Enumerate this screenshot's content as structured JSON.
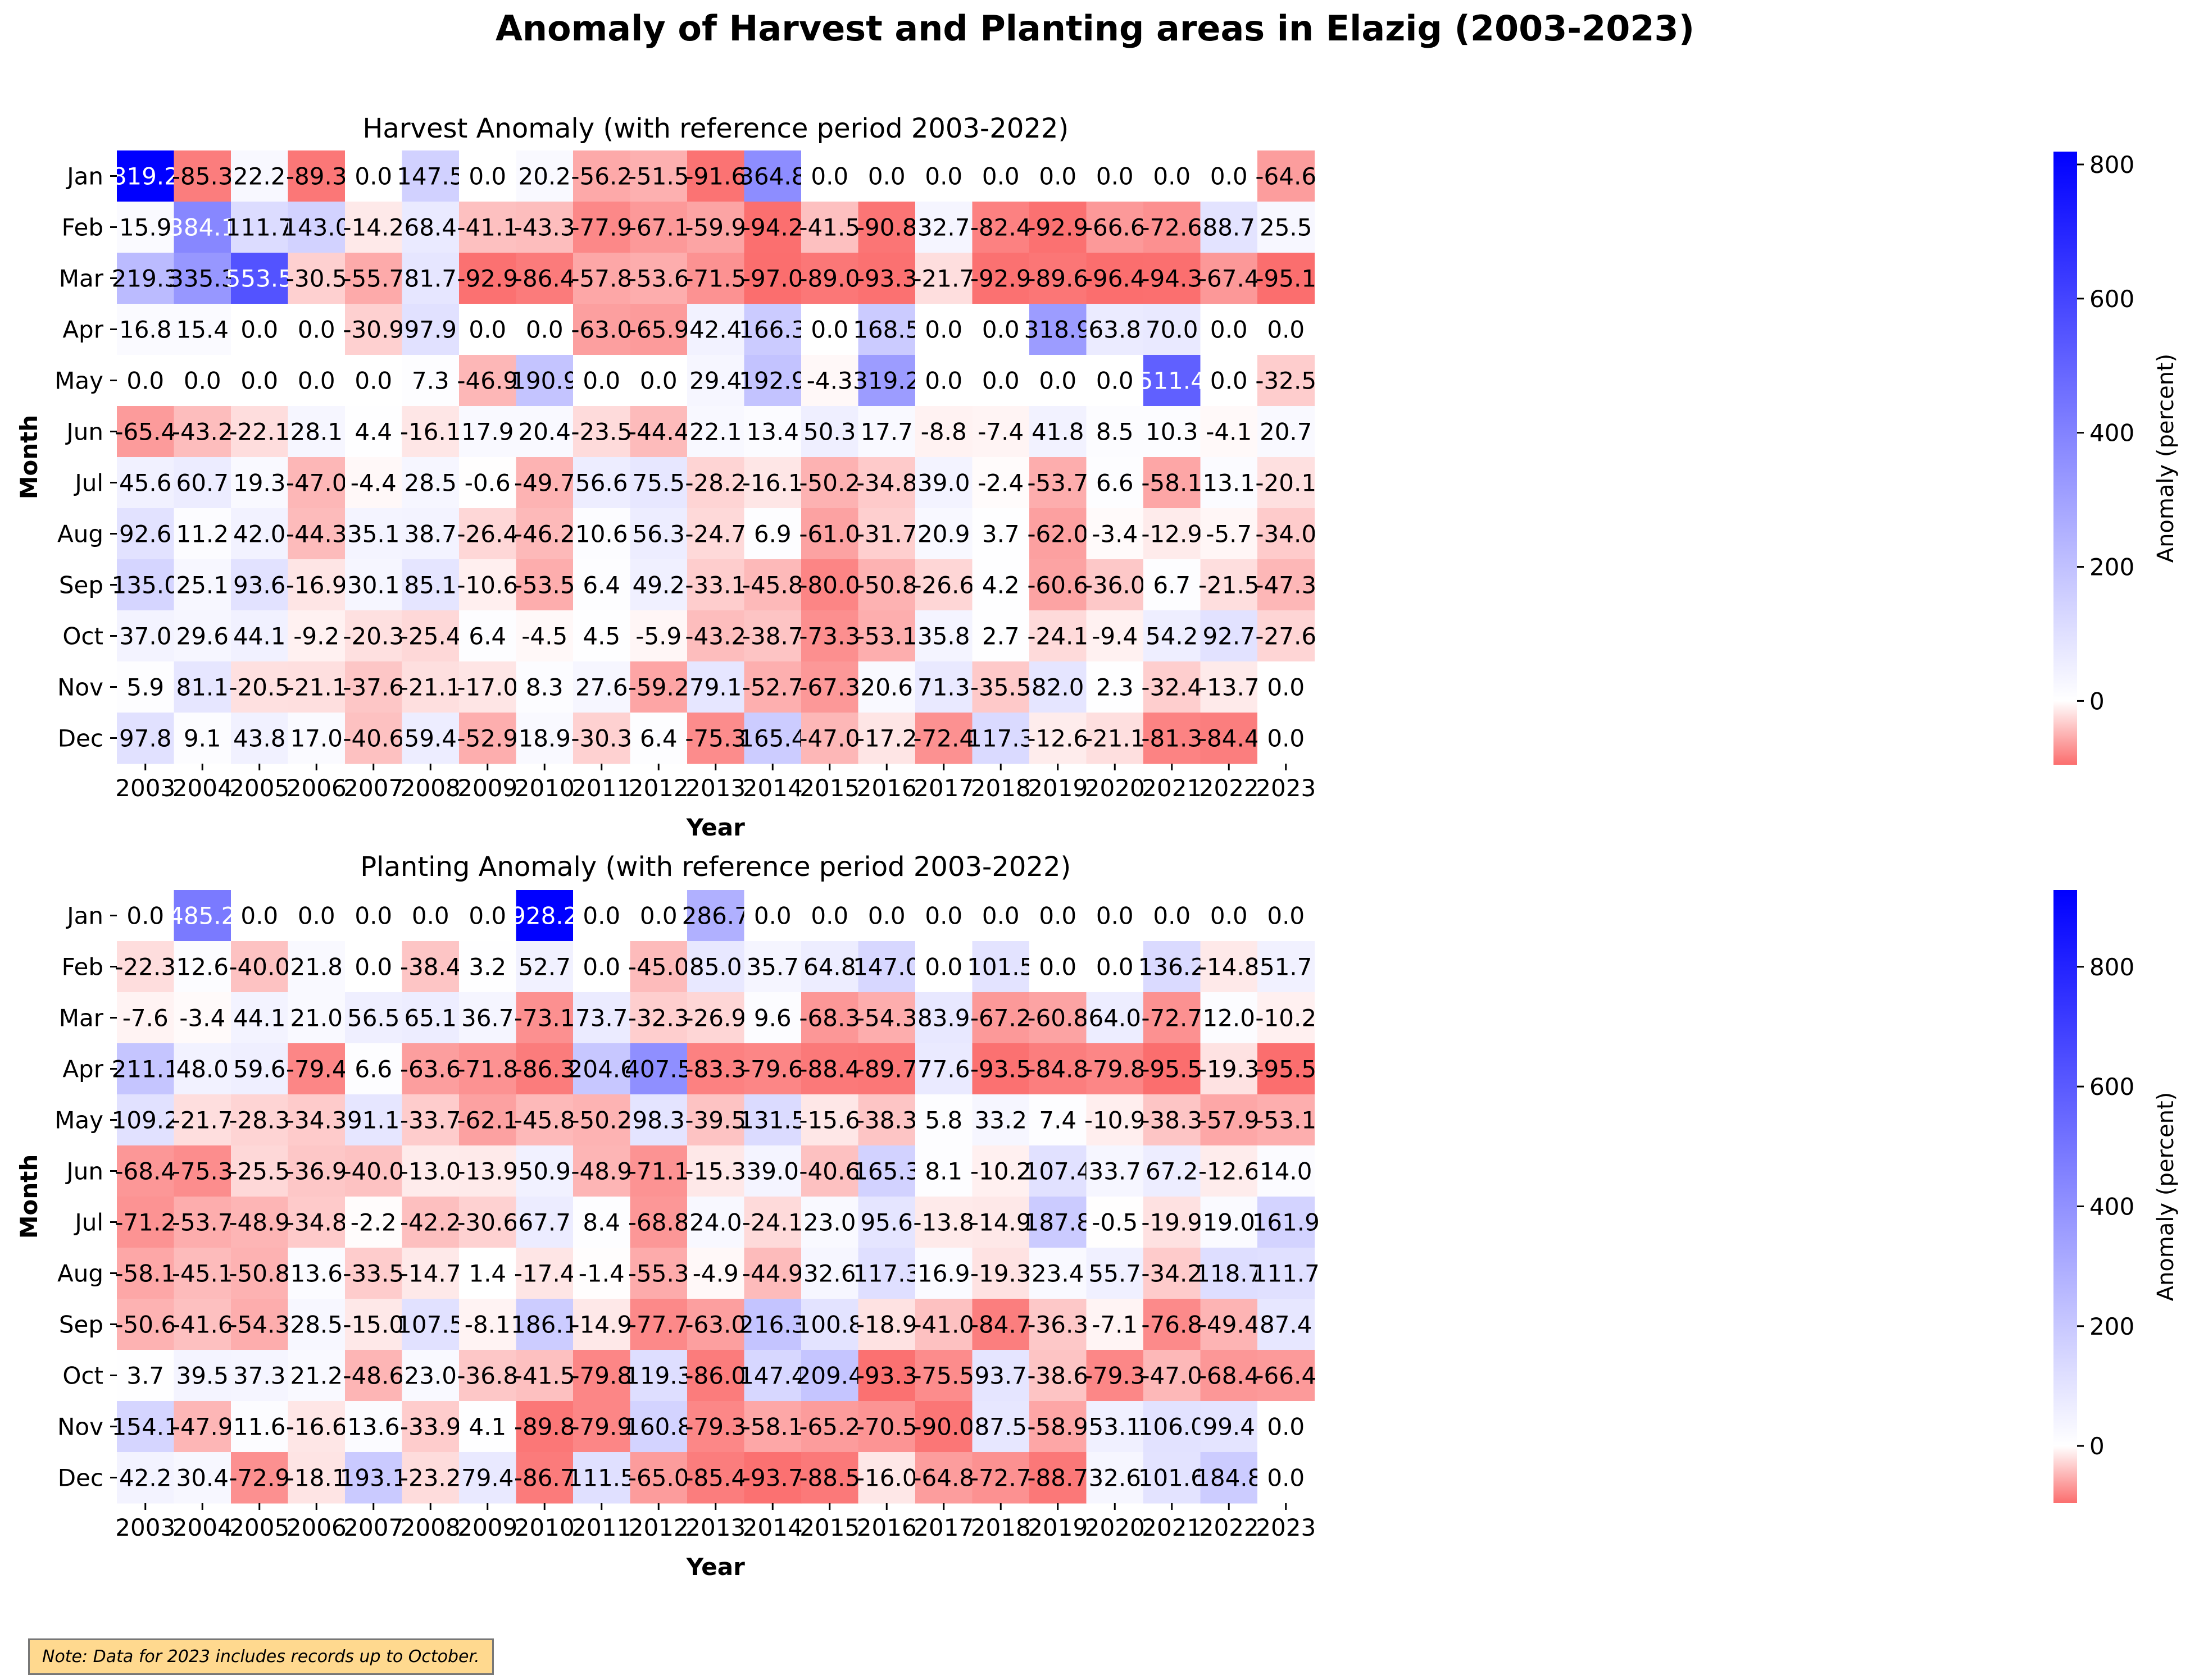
{
  "title": "Anomaly of Harvest and Planting areas in Elazig (2003-2023)",
  "note": "Note: Data for 2023 includes records up to October.",
  "colors": {
    "negative": "#fb6e6e",
    "zero": "#ffffff",
    "positive": "#0000ff"
  },
  "chart_data": [
    {
      "type": "heatmap",
      "title": "Harvest Anomaly (with reference period 2003-2022)",
      "xlabel": "Year",
      "ylabel": "Month",
      "colorbar_label": "Anomaly (percent)",
      "colorbar_ticks": [
        0,
        200,
        400,
        600,
        800
      ],
      "vmin": -95.1,
      "vmax": 819.2,
      "x": [
        "2003",
        "2004",
        "2005",
        "2006",
        "2007",
        "2008",
        "2009",
        "2010",
        "2011",
        "2012",
        "2013",
        "2014",
        "2015",
        "2016",
        "2017",
        "2018",
        "2019",
        "2020",
        "2021",
        "2022",
        "2023"
      ],
      "y": [
        "Jan",
        "Feb",
        "Mar",
        "Apr",
        "May",
        "Jun",
        "Jul",
        "Aug",
        "Sep",
        "Oct",
        "Nov",
        "Dec"
      ],
      "values": [
        [
          819.2,
          -85.3,
          22.2,
          -89.3,
          0.0,
          147.5,
          0.0,
          20.2,
          -56.2,
          -51.5,
          -91.6,
          364.8,
          0.0,
          0.0,
          0.0,
          0.0,
          0.0,
          0.0,
          0.0,
          0.0,
          -64.6
        ],
        [
          15.9,
          384.1,
          111.7,
          143.0,
          -14.2,
          68.4,
          -41.1,
          -43.3,
          -77.9,
          -67.1,
          -59.9,
          -94.2,
          -41.5,
          -90.8,
          32.7,
          -82.4,
          -92.9,
          -66.6,
          -72.6,
          88.7,
          25.5
        ],
        [
          219.3,
          335.3,
          553.5,
          -30.5,
          -55.7,
          81.7,
          -92.9,
          -86.4,
          -57.8,
          -53.6,
          -71.5,
          -97.0,
          -89.0,
          -93.3,
          -21.7,
          -92.9,
          -89.6,
          -96.4,
          -94.3,
          -67.4,
          -95.1
        ],
        [
          16.8,
          15.4,
          0.0,
          0.0,
          -30.9,
          97.9,
          0.0,
          0.0,
          -63.0,
          -65.9,
          42.4,
          166.3,
          0.0,
          168.5,
          0.0,
          0.0,
          318.9,
          63.8,
          70.0,
          0.0,
          0.0
        ],
        [
          0.0,
          0.0,
          0.0,
          0.0,
          0.0,
          7.3,
          -46.9,
          190.9,
          0.0,
          0.0,
          29.4,
          192.9,
          -4.3,
          319.2,
          0.0,
          0.0,
          0.0,
          0.0,
          511.4,
          0.0,
          -32.5
        ],
        [
          -65.4,
          -43.2,
          -22.1,
          28.1,
          4.4,
          -16.1,
          17.9,
          20.4,
          -23.5,
          -44.4,
          22.1,
          13.4,
          50.3,
          17.7,
          -8.8,
          -7.4,
          41.8,
          8.5,
          10.3,
          -4.1,
          20.7
        ],
        [
          45.6,
          60.7,
          19.3,
          -47.0,
          -4.4,
          28.5,
          -0.6,
          -49.7,
          56.6,
          75.5,
          -28.2,
          -16.1,
          -50.2,
          -34.8,
          39.0,
          -2.4,
          -53.7,
          6.6,
          -58.1,
          13.1,
          -20.1
        ],
        [
          92.6,
          11.2,
          42.0,
          -44.3,
          35.1,
          38.7,
          -26.4,
          -46.2,
          10.6,
          56.3,
          -24.7,
          6.9,
          -61.0,
          -31.7,
          20.9,
          3.7,
          -62.0,
          -3.4,
          -12.9,
          -5.7,
          -34.0
        ],
        [
          135.0,
          25.1,
          93.6,
          -16.9,
          30.1,
          85.1,
          -10.6,
          -53.5,
          6.4,
          49.2,
          -33.1,
          -45.8,
          -80.0,
          -50.8,
          -26.6,
          4.2,
          -60.6,
          -36.0,
          6.7,
          -21.5,
          -47.3
        ],
        [
          37.0,
          29.6,
          44.1,
          -9.2,
          -20.3,
          -25.4,
          6.4,
          -4.5,
          4.5,
          -5.9,
          -43.2,
          -38.7,
          -73.3,
          -53.1,
          35.8,
          2.7,
          -24.1,
          -9.4,
          54.2,
          92.7,
          -27.6
        ],
        [
          5.9,
          81.1,
          -20.5,
          -21.1,
          -37.6,
          -21.1,
          -17.0,
          8.3,
          27.6,
          -59.2,
          79.1,
          -52.7,
          -67.3,
          20.6,
          71.3,
          -35.5,
          82.0,
          2.3,
          -32.4,
          -13.7,
          0.0
        ],
        [
          97.8,
          9.1,
          43.8,
          17.0,
          -40.6,
          59.4,
          -52.9,
          18.9,
          -30.3,
          6.4,
          -75.3,
          165.4,
          -47.0,
          -17.2,
          -72.4,
          117.3,
          -12.6,
          -21.1,
          -81.3,
          -84.4,
          0.0
        ]
      ]
    },
    {
      "type": "heatmap",
      "title": "Planting Anomaly (with reference period 2003-2022)",
      "xlabel": "Year",
      "ylabel": "Month",
      "colorbar_label": "Anomaly (percent)",
      "colorbar_ticks": [
        0,
        200,
        400,
        600,
        800
      ],
      "vmin": -95.5,
      "vmax": 928.2,
      "x": [
        "2003",
        "2004",
        "2005",
        "2006",
        "2007",
        "2008",
        "2009",
        "2010",
        "2011",
        "2012",
        "2013",
        "2014",
        "2015",
        "2016",
        "2017",
        "2018",
        "2019",
        "2020",
        "2021",
        "2022",
        "2023"
      ],
      "y": [
        "Jan",
        "Feb",
        "Mar",
        "Apr",
        "May",
        "Jun",
        "Jul",
        "Aug",
        "Sep",
        "Oct",
        "Nov",
        "Dec"
      ],
      "values": [
        [
          0.0,
          485.2,
          0.0,
          0.0,
          0.0,
          0.0,
          0.0,
          928.2,
          0.0,
          0.0,
          286.7,
          0.0,
          0.0,
          0.0,
          0.0,
          0.0,
          0.0,
          0.0,
          0.0,
          0.0,
          0.0
        ],
        [
          -22.3,
          12.6,
          -40.0,
          21.8,
          0.0,
          -38.4,
          3.2,
          52.7,
          0.0,
          -45.0,
          85.0,
          35.7,
          64.8,
          147.0,
          0.0,
          101.5,
          0.0,
          0.0,
          136.2,
          -14.8,
          51.7
        ],
        [
          -7.6,
          -3.4,
          44.1,
          21.0,
          56.5,
          65.1,
          36.7,
          -73.1,
          73.7,
          -32.3,
          -26.9,
          9.6,
          -68.3,
          -54.3,
          83.9,
          -67.2,
          -60.8,
          64.0,
          -72.7,
          12.0,
          -10.2
        ],
        [
          211.1,
          48.0,
          59.6,
          -79.4,
          6.6,
          -63.6,
          -71.8,
          -86.3,
          204.6,
          407.5,
          -83.3,
          -79.6,
          -88.4,
          -89.7,
          77.6,
          -93.5,
          -84.8,
          -79.8,
          -95.5,
          -19.3,
          -95.5
        ],
        [
          109.2,
          -21.7,
          -28.3,
          -34.3,
          91.1,
          -33.7,
          -62.1,
          -45.8,
          -50.2,
          98.3,
          -39.5,
          131.5,
          -15.6,
          -38.3,
          5.8,
          33.2,
          7.4,
          -10.9,
          -38.3,
          -57.9,
          -53.1
        ],
        [
          -68.4,
          -75.3,
          -25.5,
          -36.9,
          -40.0,
          -13.0,
          -13.9,
          50.9,
          -48.9,
          -71.1,
          -15.3,
          39.0,
          -40.6,
          165.3,
          8.1,
          -10.2,
          107.4,
          33.7,
          67.2,
          -12.6,
          14.0
        ],
        [
          -71.2,
          -53.7,
          -48.9,
          -34.8,
          -2.2,
          -42.2,
          -30.6,
          67.7,
          8.4,
          -68.8,
          24.0,
          -24.1,
          23.0,
          95.6,
          -13.8,
          -14.9,
          187.8,
          -0.5,
          -19.9,
          19.0,
          161.9
        ],
        [
          -58.1,
          -45.1,
          -50.8,
          13.6,
          -33.5,
          -14.7,
          1.4,
          -17.4,
          -1.4,
          -55.3,
          -4.9,
          -44.9,
          32.6,
          117.3,
          16.9,
          -19.3,
          23.4,
          55.7,
          -34.2,
          118.7,
          111.7
        ],
        [
          -50.6,
          -41.6,
          -54.3,
          28.5,
          -15.0,
          107.5,
          -8.1,
          186.1,
          -14.9,
          -77.7,
          -63.0,
          216.3,
          100.8,
          -18.9,
          -41.0,
          -84.7,
          -36.3,
          -7.1,
          -76.8,
          -49.4,
          87.4
        ],
        [
          3.7,
          39.5,
          37.3,
          21.2,
          -48.6,
          23.0,
          -36.8,
          -41.5,
          -79.8,
          119.3,
          -86.0,
          147.4,
          209.4,
          -93.3,
          -75.5,
          93.7,
          -38.6,
          -79.3,
          -47.0,
          -68.4,
          -66.4
        ],
        [
          154.1,
          -47.9,
          11.6,
          -16.6,
          13.6,
          -33.9,
          4.1,
          -89.8,
          -79.9,
          160.8,
          -79.3,
          -58.1,
          -65.2,
          -70.5,
          -90.0,
          87.5,
          -58.9,
          53.1,
          106.0,
          99.4,
          0.0
        ],
        [
          42.2,
          30.4,
          -72.9,
          -18.1,
          193.1,
          -23.2,
          79.4,
          -86.7,
          111.5,
          -65.0,
          -85.4,
          -93.7,
          -88.5,
          -16.0,
          -64.8,
          -72.7,
          -88.7,
          32.6,
          101.6,
          184.8,
          0.0
        ]
      ]
    }
  ]
}
